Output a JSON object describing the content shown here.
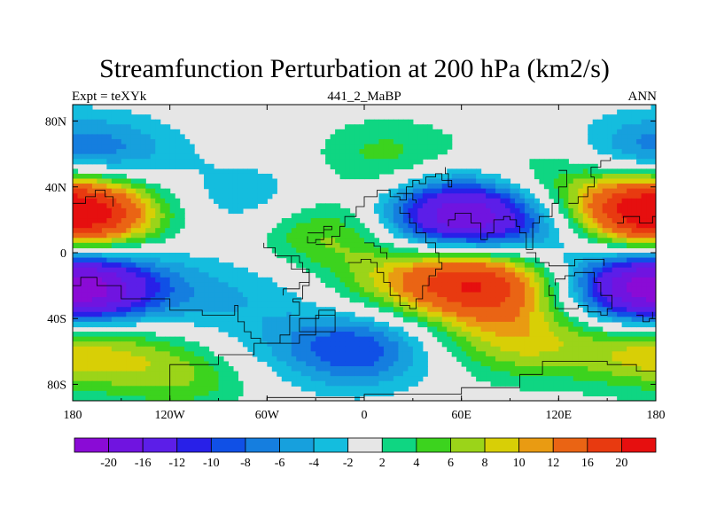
{
  "title": "Streamfunction Perturbation at 200 hPa (km2/s)",
  "subtitle_left": "Expt = teXYk",
  "subtitle_center": "441_2_MaBP",
  "subtitle_right": "ANN",
  "axes": {
    "x_ticks": [
      "180",
      "120W",
      "60W",
      "0",
      "60E",
      "120E",
      "180"
    ],
    "y_ticks": [
      "80N",
      "40N",
      "0",
      "40S",
      "80S"
    ]
  },
  "colorbar": {
    "labels": [
      "-20",
      "-16",
      "-12",
      "-10",
      "-8",
      "-6",
      "-4",
      "-2",
      "2",
      "4",
      "6",
      "8",
      "10",
      "12",
      "16",
      "20"
    ],
    "colors": [
      "#8a0bd6",
      "#7014e0",
      "#5c1ee8",
      "#2820e8",
      "#1050e6",
      "#157edf",
      "#17a0dd",
      "#14bdde",
      "#e6e6e6",
      "#0fd682",
      "#3cd31e",
      "#9bd419",
      "#d8cf06",
      "#e99b12",
      "#ea6414",
      "#e83a10",
      "#e60f0f"
    ]
  },
  "field": {
    "type": "filled-contour",
    "units": "km2/s",
    "features": [
      {
        "lon": 60,
        "lat": 22,
        "value": -20
      },
      {
        "lon": 70,
        "lat": -17,
        "value": 20
      },
      {
        "lon": 172,
        "lat": 25,
        "value": 14
      },
      {
        "lon": -172,
        "lat": 25,
        "value": 14
      },
      {
        "lon": 172,
        "lat": -22,
        "value": -13
      },
      {
        "lon": -170,
        "lat": -22,
        "value": -13
      },
      {
        "lon": -30,
        "lat": 12,
        "value": 8
      },
      {
        "lon": 95,
        "lat": -53,
        "value": 8
      },
      {
        "lon": -5,
        "lat": -58,
        "value": -10
      },
      {
        "lon": -158,
        "lat": 58,
        "value": -6
      },
      {
        "lon": 15,
        "lat": 58,
        "value": 5
      },
      {
        "lon": 115,
        "lat": 45,
        "value": 5
      },
      {
        "lon": 165,
        "lat": 60,
        "value": -5
      },
      {
        "lon": -65,
        "lat": 30,
        "value": -5
      },
      {
        "lon": 108,
        "lat": 10,
        "value": -5
      },
      {
        "lon": -38,
        "lat": -15,
        "value": -3
      },
      {
        "lon": 10,
        "lat": -18,
        "value": 6
      },
      {
        "lon": -110,
        "lat": -72,
        "value": 7
      },
      {
        "lon": -165,
        "lat": -55,
        "value": 5
      },
      {
        "lon": 170,
        "lat": -60,
        "value": 6
      },
      {
        "lon": -100,
        "lat": -25,
        "value": -3
      },
      {
        "lon": -80,
        "lat": -58,
        "value": -3
      }
    ]
  }
}
